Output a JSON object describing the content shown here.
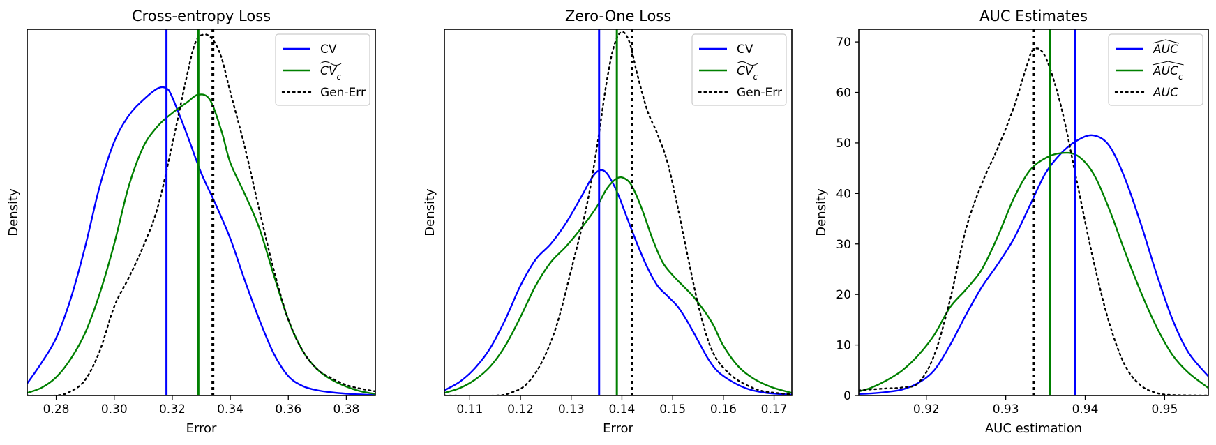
{
  "chart_data": [
    {
      "type": "line",
      "kind": "density",
      "title": "Cross-entropy Loss",
      "xlabel": "Error",
      "ylabel": "Density",
      "xlim": [
        0.27,
        0.39
      ],
      "ylim": [
        0,
        70
      ],
      "xticks": [
        0.28,
        0.3,
        0.32,
        0.34,
        0.36,
        0.38
      ],
      "xtick_labels": [
        "0.28",
        "0.30",
        "0.32",
        "0.34",
        "0.36",
        "0.38"
      ],
      "yticks": [],
      "ytick_labels": [],
      "legend_position": "top-right",
      "series": [
        {
          "name": "CV",
          "legend_label": "CV",
          "color": "#0000ff",
          "style": "solid",
          "x": [
            0.27,
            0.275,
            0.28,
            0.285,
            0.29,
            0.295,
            0.3,
            0.305,
            0.31,
            0.315,
            0.318,
            0.32,
            0.325,
            0.33,
            0.335,
            0.34,
            0.345,
            0.35,
            0.355,
            0.36,
            0.365,
            0.37,
            0.375,
            0.38,
            0.385,
            0.39
          ],
          "values": [
            2.3,
            6.3,
            11.0,
            18.5,
            28.5,
            40.0,
            48.5,
            53.5,
            56.5,
            58.7,
            58.7,
            57.0,
            50.0,
            42.5,
            36.5,
            30.0,
            22.0,
            14.5,
            8.0,
            3.7,
            1.8,
            1.0,
            0.6,
            0.35,
            0.2,
            0.1
          ]
        },
        {
          "name": "CV_c",
          "legend_label": "CV",
          "legend_sub": "c",
          "color": "#008000",
          "style": "solid",
          "x": [
            0.27,
            0.275,
            0.28,
            0.285,
            0.29,
            0.295,
            0.3,
            0.305,
            0.31,
            0.315,
            0.32,
            0.325,
            0.329,
            0.333,
            0.337,
            0.34,
            0.345,
            0.35,
            0.355,
            0.36,
            0.365,
            0.37,
            0.375,
            0.38,
            0.385,
            0.39
          ],
          "values": [
            0.5,
            1.5,
            3.5,
            7.0,
            12.0,
            19.5,
            29.0,
            40.0,
            47.5,
            51.5,
            54.0,
            56.0,
            57.5,
            56.5,
            50.5,
            44.5,
            38.5,
            32.0,
            23.0,
            14.5,
            8.5,
            5.0,
            3.0,
            1.7,
            0.8,
            0.3
          ]
        },
        {
          "name": "Gen-Err",
          "legend_label": "Gen-Err",
          "color": "#000000",
          "style": "dotted",
          "x": [
            0.27,
            0.28,
            0.285,
            0.29,
            0.295,
            0.3,
            0.305,
            0.31,
            0.315,
            0.32,
            0.325,
            0.328,
            0.331,
            0.334,
            0.337,
            0.34,
            0.345,
            0.35,
            0.355,
            0.36,
            0.365,
            0.37,
            0.375,
            0.38,
            0.385,
            0.39
          ],
          "values": [
            0.0,
            0.0,
            0.8,
            3.0,
            8.5,
            17.0,
            22.5,
            28.5,
            36.0,
            48.0,
            61.0,
            67.5,
            69.0,
            68.0,
            64.5,
            58.0,
            47.5,
            35.5,
            24.0,
            14.5,
            8.5,
            5.0,
            3.3,
            2.0,
            1.3,
            0.8
          ]
        }
      ],
      "vlines": [
        {
          "x": 0.318,
          "color": "#0000ff",
          "style": "solid"
        },
        {
          "x": 0.329,
          "color": "#008000",
          "style": "solid"
        },
        {
          "x": 0.334,
          "color": "#000000",
          "style": "dotted"
        }
      ]
    },
    {
      "type": "line",
      "kind": "density",
      "title": "Zero-One Loss",
      "xlabel": "Error",
      "ylabel": "Density",
      "xlim": [
        0.105,
        0.1735
      ],
      "ylim": [
        0,
        70
      ],
      "xticks": [
        0.11,
        0.12,
        0.13,
        0.14,
        0.15,
        0.16,
        0.17
      ],
      "xtick_labels": [
        "0.11",
        "0.12",
        "0.13",
        "0.14",
        "0.15",
        "0.16",
        "0.17"
      ],
      "yticks": [],
      "ytick_labels": [],
      "legend_position": "top-right",
      "series": [
        {
          "name": "CV",
          "legend_label": "CV",
          "color": "#0000ff",
          "style": "solid",
          "x": [
            0.105,
            0.108,
            0.111,
            0.114,
            0.117,
            0.12,
            0.123,
            0.126,
            0.129,
            0.132,
            0.134,
            0.1355,
            0.137,
            0.139,
            0.141,
            0.143,
            0.145,
            0.147,
            0.149,
            0.151,
            0.153,
            0.155,
            0.157,
            0.159,
            0.162,
            0.165,
            0.1685,
            0.1735
          ],
          "values": [
            1.0,
            2.6,
            5.2,
            9.0,
            14.5,
            21.0,
            26.0,
            29.0,
            33.0,
            38.0,
            41.5,
            43.0,
            42.5,
            39.0,
            34.0,
            29.0,
            24.5,
            21.0,
            19.0,
            17.0,
            14.0,
            10.5,
            7.0,
            4.5,
            2.5,
            1.2,
            0.5,
            0.15
          ]
        },
        {
          "name": "CV_c",
          "legend_label": "CV",
          "legend_sub": "c",
          "color": "#008000",
          "style": "solid",
          "x": [
            0.105,
            0.108,
            0.111,
            0.114,
            0.117,
            0.12,
            0.123,
            0.126,
            0.129,
            0.132,
            0.135,
            0.137,
            0.139,
            0.1405,
            0.142,
            0.144,
            0.146,
            0.148,
            0.15,
            0.152,
            0.154,
            0.156,
            0.158,
            0.16,
            0.163,
            0.166,
            0.1695,
            0.1735
          ],
          "values": [
            0.5,
            1.4,
            3.0,
            5.5,
            9.5,
            15.0,
            21.0,
            25.5,
            28.5,
            32.0,
            36.0,
            39.5,
            41.5,
            41.5,
            40.0,
            35.5,
            30.0,
            25.5,
            23.0,
            21.0,
            19.0,
            16.5,
            13.5,
            9.5,
            5.5,
            3.2,
            1.6,
            0.5
          ]
        },
        {
          "name": "Gen-Err",
          "legend_label": "Gen-Err",
          "color": "#000000",
          "style": "dotted",
          "x": [
            0.105,
            0.115,
            0.118,
            0.121,
            0.124,
            0.127,
            0.13,
            0.133,
            0.135,
            0.137,
            0.1385,
            0.14,
            0.1415,
            0.143,
            0.145,
            0.147,
            0.149,
            0.151,
            0.153,
            0.155,
            0.157,
            0.159,
            0.162,
            0.165,
            0.168,
            0.1735
          ],
          "values": [
            0.0,
            0.0,
            0.5,
            2.0,
            6.0,
            13.0,
            24.0,
            36.0,
            47.0,
            60.0,
            67.0,
            69.5,
            67.5,
            61.5,
            54.5,
            50.0,
            44.5,
            36.0,
            26.5,
            17.5,
            10.5,
            6.5,
            3.5,
            1.8,
            0.8,
            0.2
          ]
        }
      ],
      "vlines": [
        {
          "x": 0.1355,
          "color": "#0000ff",
          "style": "solid"
        },
        {
          "x": 0.139,
          "color": "#008000",
          "style": "solid"
        },
        {
          "x": 0.142,
          "color": "#000000",
          "style": "dotted"
        }
      ]
    },
    {
      "type": "line",
      "kind": "density",
      "title": "AUC Estimates",
      "xlabel": "AUC estimation",
      "ylabel": "Density",
      "xlim": [
        0.9115,
        0.9555
      ],
      "ylim": [
        0,
        72.5
      ],
      "xticks": [
        0.92,
        0.93,
        0.94,
        0.95
      ],
      "xtick_labels": [
        "0.92",
        "0.93",
        "0.94",
        "0.95"
      ],
      "yticks": [
        0,
        10,
        20,
        30,
        40,
        50,
        60,
        70
      ],
      "ytick_labels": [
        "0",
        "10",
        "20",
        "30",
        "40",
        "50",
        "60",
        "70"
      ],
      "legend_position": "top-right",
      "series": [
        {
          "name": "AUC-hat",
          "legend_label": "AUC",
          "legend_hat": true,
          "color": "#0000ff",
          "style": "solid",
          "x": [
            0.9115,
            0.913,
            0.915,
            0.917,
            0.919,
            0.921,
            0.923,
            0.925,
            0.927,
            0.929,
            0.931,
            0.933,
            0.935,
            0.937,
            0.939,
            0.941,
            0.943,
            0.945,
            0.947,
            0.949,
            0.951,
            0.953,
            0.9555
          ],
          "values": [
            0.3,
            0.4,
            0.7,
            1.2,
            2.5,
            5.0,
            10.0,
            16.0,
            21.5,
            26.0,
            31.0,
            37.5,
            44.0,
            48.0,
            50.5,
            51.5,
            49.5,
            43.0,
            34.0,
            24.0,
            15.0,
            8.5,
            3.8
          ]
        },
        {
          "name": "AUC-hat_c",
          "legend_label": "AUC",
          "legend_hat": true,
          "legend_sub": "c",
          "color": "#008000",
          "style": "solid",
          "x": [
            0.9115,
            0.913,
            0.915,
            0.917,
            0.919,
            0.921,
            0.923,
            0.925,
            0.927,
            0.929,
            0.931,
            0.933,
            0.935,
            0.937,
            0.939,
            0.941,
            0.943,
            0.945,
            0.947,
            0.949,
            0.951,
            0.953,
            0.9555
          ],
          "values": [
            0.8,
            1.5,
            3.0,
            5.0,
            8.0,
            12.0,
            17.5,
            21.0,
            25.0,
            31.5,
            39.0,
            44.5,
            47.0,
            48.0,
            47.5,
            44.0,
            37.0,
            28.5,
            20.5,
            13.5,
            8.0,
            4.5,
            1.5
          ]
        },
        {
          "name": "AUC",
          "legend_label": "AUC",
          "color": "#000000",
          "style": "dotted",
          "x": [
            0.9115,
            0.913,
            0.915,
            0.917,
            0.919,
            0.921,
            0.923,
            0.925,
            0.927,
            0.929,
            0.931,
            0.9325,
            0.9335,
            0.935,
            0.937,
            0.939,
            0.941,
            0.943,
            0.945,
            0.947,
            0.949,
            0.951,
            0.9555
          ],
          "values": [
            1.0,
            1.2,
            1.4,
            1.6,
            2.5,
            8.0,
            19.0,
            33.0,
            42.0,
            49.0,
            57.0,
            64.5,
            68.5,
            67.0,
            57.0,
            42.0,
            27.0,
            14.5,
            6.0,
            2.0,
            0.5,
            0.1,
            0.0
          ]
        }
      ],
      "vlines": [
        {
          "x": 0.9387,
          "color": "#0000ff",
          "style": "solid"
        },
        {
          "x": 0.9356,
          "color": "#008000",
          "style": "solid"
        },
        {
          "x": 0.9335,
          "color": "#000000",
          "style": "dotted"
        }
      ]
    }
  ]
}
